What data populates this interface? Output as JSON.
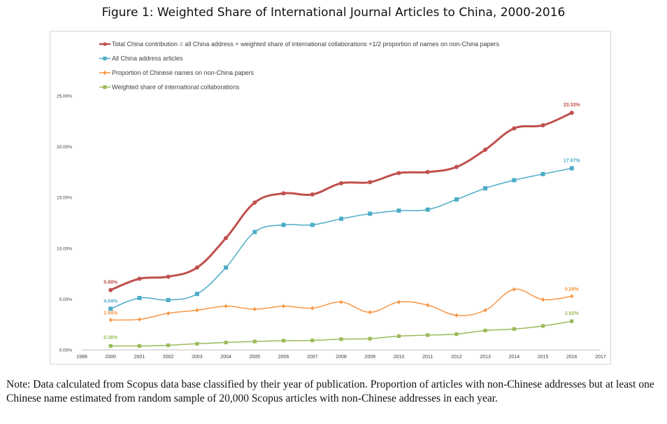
{
  "figure": {
    "title": "Figure 1: Weighted Share of International Journal Articles to China, 2000-2016",
    "note": "Note: Data calculated from Scopus data base classified by their year of publication. Proportion of articles with non-Chinese addresses but at least one Chinese name estimated from random sample of 20,000 Scopus articles with non-Chinese addresses in each year."
  },
  "chart_data": {
    "type": "line",
    "title": "",
    "xlabel": "",
    "ylabel": "",
    "x": [
      2000,
      2001,
      2002,
      2003,
      2004,
      2005,
      2006,
      2007,
      2008,
      2009,
      2010,
      2011,
      2012,
      2013,
      2014,
      2015,
      2016
    ],
    "xlim": [
      1999,
      2017
    ],
    "x_ticks": [
      "1999",
      "2000",
      "2001",
      "2002",
      "2003",
      "2004",
      "2005",
      "2006",
      "2007",
      "2008",
      "2009",
      "2010",
      "2011",
      "2012",
      "2013",
      "2014",
      "2015",
      "2016",
      "2017"
    ],
    "ylim": [
      0,
      25
    ],
    "y_ticks": [
      0,
      5,
      10,
      15,
      20,
      25
    ],
    "y_tick_labels": [
      "0.00%",
      "5.00%",
      "10.00%",
      "15.00%",
      "20.00%",
      "25.00%"
    ],
    "grid": false,
    "legend_position": "top-left",
    "series": [
      {
        "name": "Total China contribution = all China address + weighted share of international collaborations +1/2 proportion of names on non-China papers",
        "color": "#c0504d",
        "marker": "circle",
        "values": [
          5.89,
          7.0,
          7.2,
          8.1,
          11.0,
          14.5,
          15.4,
          15.3,
          16.4,
          16.5,
          17.4,
          17.5,
          18.0,
          19.7,
          21.8,
          22.1,
          23.33
        ],
        "start_label": "5.89%",
        "end_label": "23.33%"
      },
      {
        "name": "All China address articles",
        "color": "#4bacc6",
        "marker": "square",
        "values": [
          4.04,
          5.1,
          4.9,
          5.5,
          8.1,
          11.6,
          12.3,
          12.3,
          12.9,
          13.4,
          13.7,
          13.8,
          14.8,
          15.9,
          16.7,
          17.3,
          17.87
        ],
        "start_label": "4.04%",
        "end_label": "17.87%"
      },
      {
        "name": "Proportion of Chinese names on non-China papers",
        "color": "#f79646",
        "marker": "diamond",
        "values": [
          2.94,
          3.0,
          3.6,
          3.9,
          4.3,
          4.0,
          4.3,
          4.1,
          4.7,
          3.7,
          4.7,
          4.4,
          3.4,
          3.9,
          5.95,
          4.95,
          5.28
        ],
        "start_label": "2.94%",
        "end_label": "5.28%"
      },
      {
        "name": "Weighted share of international collaborations",
        "color": "#9bbb59",
        "marker": "triangle",
        "values": [
          0.38,
          0.38,
          0.45,
          0.6,
          0.72,
          0.82,
          0.9,
          0.93,
          1.05,
          1.1,
          1.35,
          1.45,
          1.55,
          1.9,
          2.05,
          2.35,
          2.82
        ],
        "start_label": "0.38%",
        "end_label": "2.82%"
      }
    ]
  }
}
